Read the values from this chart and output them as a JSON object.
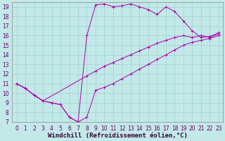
{
  "xlabel": "Windchill (Refroidissement éolien,°C)",
  "bg_color": "#c2e8e8",
  "grid_color": "#a8d4d4",
  "line_color": "#aa00aa",
  "xlim": [
    -0.5,
    23.5
  ],
  "ylim": [
    7,
    19.5
  ],
  "xticks": [
    0,
    1,
    2,
    3,
    4,
    5,
    6,
    7,
    8,
    9,
    10,
    11,
    12,
    13,
    14,
    15,
    16,
    17,
    18,
    19,
    20,
    21,
    22,
    23
  ],
  "yticks": [
    7,
    8,
    9,
    10,
    11,
    12,
    13,
    14,
    15,
    16,
    17,
    18,
    19
  ],
  "line1_x": [
    0,
    1,
    2,
    3,
    4,
    5,
    6,
    7,
    8,
    9,
    10,
    11,
    12,
    13,
    14,
    15,
    16,
    17,
    18,
    19,
    20,
    21,
    22,
    23
  ],
  "line1_y": [
    11,
    10.5,
    9.8,
    9.2,
    9.0,
    8.8,
    7.5,
    7.0,
    7.5,
    10.3,
    10.6,
    11.0,
    11.5,
    12.0,
    12.5,
    13.0,
    13.5,
    14.0,
    14.5,
    15.0,
    15.3,
    15.5,
    15.7,
    16.0
  ],
  "line2_x": [
    0,
    1,
    2,
    3,
    4,
    5,
    6,
    7,
    8,
    9,
    10,
    11,
    12,
    13,
    14,
    15,
    16,
    17,
    18,
    19,
    20,
    21,
    22,
    23
  ],
  "line2_y": [
    11,
    10.5,
    9.8,
    9.2,
    9.0,
    8.8,
    7.5,
    7.0,
    16.0,
    19.2,
    19.3,
    19.0,
    19.1,
    19.3,
    19.0,
    18.7,
    18.2,
    19.0,
    18.5,
    17.5,
    16.5,
    15.8,
    15.9,
    16.3
  ],
  "line3_x": [
    0,
    1,
    2,
    3,
    8,
    9,
    10,
    11,
    12,
    13,
    14,
    15,
    16,
    17,
    18,
    19,
    20,
    21,
    22,
    23
  ],
  "line3_y": [
    11,
    10.5,
    9.8,
    9.2,
    11.8,
    12.3,
    12.8,
    13.2,
    13.6,
    14.0,
    14.4,
    14.8,
    15.2,
    15.5,
    15.8,
    16.0,
    15.8,
    16.0,
    15.8,
    16.2
  ],
  "tick_fontsize": 5.5,
  "label_fontsize": 6.5
}
